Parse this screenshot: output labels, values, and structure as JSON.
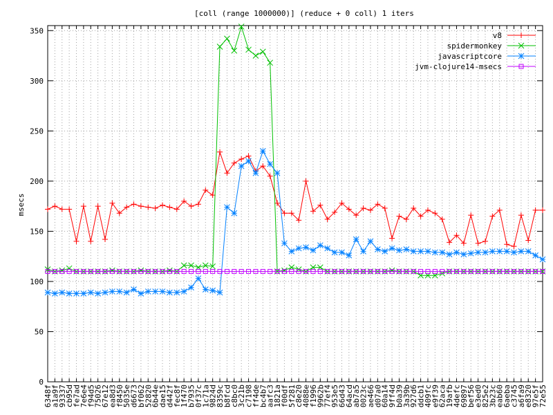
{
  "chart_data": {
    "type": "line",
    "title": "[coll (range 1000000)] (reduce + 0 coll) 1 iters",
    "xlabel": "",
    "ylabel": "msecs",
    "ylim": [
      0,
      355
    ],
    "y_ticks": [
      0,
      50,
      100,
      150,
      200,
      250,
      300,
      350
    ],
    "grid": true,
    "legend_position": "top-right",
    "categories": [
      "6348f",
      "a1a9f",
      "93337",
      "cb95d",
      "fe7ad",
      "7e6e4",
      "f94d5",
      "75026",
      "67e12",
      "ea8d3",
      "f8450",
      "5035e",
      "d6673",
      "bf062",
      "52820",
      "6b44e",
      "dae15",
      "d442f",
      "fec8f",
      "1f470",
      "b7935",
      "0f37c",
      "1c71a",
      "9824d",
      "8359c",
      "b8fcd",
      "c8bc0",
      "3c21b",
      "c7198",
      "ff4de",
      "bc4b7",
      "aafc3",
      "1821a",
      "f00df",
      "5f281",
      "c8e20",
      "4088e",
      "f1996",
      "9962b",
      "77ef4",
      "953e5",
      "66d43",
      "64acd",
      "ab7a5",
      "0023c",
      "ae466",
      "d07a0",
      "60a14",
      "9ff4d",
      "b0a39",
      "3a39b",
      "927d6",
      "ddcb1",
      "409fc",
      "e9f39",
      "62aca",
      "19afb",
      "4defc",
      "69897",
      "bef56",
      "e3ed0",
      "825e2",
      "3b23c",
      "eab60",
      "6aeba",
      "c3745",
      "a6fa9",
      "e8320",
      "97e5f",
      "72e55"
    ],
    "series": [
      {
        "name": "v8",
        "color": "#ff0000",
        "marker": "plus",
        "values": [
          172,
          175,
          172,
          172,
          140,
          175,
          140,
          175,
          142,
          178,
          168,
          174,
          177,
          175,
          174,
          173,
          176,
          174,
          172,
          180,
          175,
          177,
          191,
          186,
          229,
          208,
          218,
          222,
          225,
          210,
          215,
          205,
          178,
          168,
          168,
          161,
          200,
          170,
          176,
          162,
          169,
          178,
          172,
          166,
          173,
          171,
          177,
          173,
          143,
          165,
          162,
          173,
          165,
          171,
          168,
          162,
          139,
          146,
          138,
          166,
          138,
          140,
          165,
          171,
          137,
          135,
          166,
          141,
          171,
          171
        ]
      },
      {
        "name": "spidermonkey",
        "color": "#00c000",
        "marker": "x",
        "values": [
          112,
          110,
          111,
          113,
          110,
          110,
          110,
          110,
          110,
          111,
          110,
          110,
          110,
          111,
          110,
          110,
          110,
          111,
          110,
          116,
          116,
          114,
          116,
          115,
          334,
          342,
          330,
          354,
          331,
          325,
          329,
          318,
          110,
          111,
          114,
          112,
          110,
          114,
          114,
          110,
          110,
          110,
          110,
          110,
          110,
          110,
          110,
          110,
          111,
          110,
          110,
          110,
          106,
          106,
          106,
          108,
          110,
          110,
          110,
          110,
          110,
          110,
          110,
          110,
          110,
          110,
          110,
          110,
          110,
          110
        ]
      },
      {
        "name": "javascriptcore",
        "color": "#0080ff",
        "marker": "star",
        "values": [
          89,
          88,
          89,
          88,
          88,
          88,
          89,
          88,
          89,
          90,
          90,
          89,
          92,
          88,
          90,
          90,
          90,
          89,
          89,
          90,
          94,
          103,
          92,
          91,
          89,
          174,
          168,
          215,
          220,
          208,
          230,
          217,
          208,
          138,
          130,
          133,
          134,
          131,
          136,
          133,
          129,
          129,
          126,
          142,
          130,
          140,
          132,
          130,
          133,
          131,
          132,
          130,
          130,
          130,
          129,
          129,
          127,
          129,
          127,
          128,
          129,
          129,
          130,
          130,
          130,
          129,
          130,
          130,
          126,
          122
        ]
      },
      {
        "name": "jvm-clojure14-msecs",
        "color": "#c000ff",
        "marker": "square",
        "values": [
          110,
          110,
          110,
          110,
          110,
          110,
          110,
          110,
          110,
          110,
          110,
          110,
          110,
          110,
          110,
          110,
          110,
          110,
          110,
          110,
          110,
          110,
          110,
          110,
          110,
          110,
          110,
          110,
          110,
          110,
          110,
          110,
          110,
          110,
          110,
          110,
          110,
          110,
          110,
          110,
          110,
          110,
          110,
          110,
          110,
          110,
          110,
          110,
          110,
          110,
          110,
          110,
          110,
          110,
          110,
          110,
          110,
          110,
          110,
          110,
          110,
          110,
          110,
          110,
          110,
          110,
          110,
          110,
          110,
          110
        ]
      }
    ]
  }
}
